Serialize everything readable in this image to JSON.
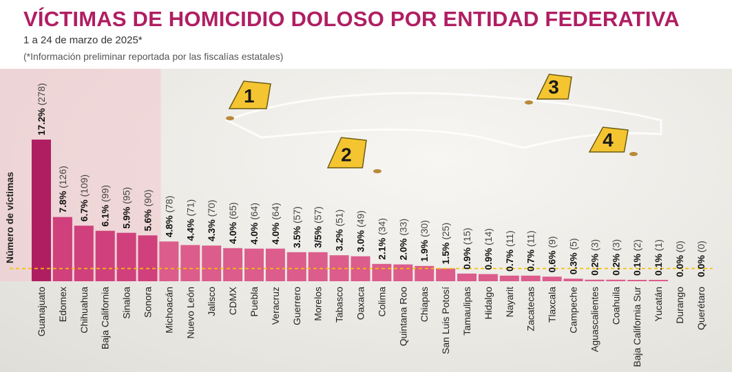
{
  "header": {
    "title": "VÍCTIMAS DE HOMICIDIO DOLOSO POR ENTIDAD FEDERATIVA",
    "subtitle": "1 a 24 de marzo de 2025*",
    "note": "(*Información preliminar reportada por las fiscalías estatales)"
  },
  "colors": {
    "title": "#b01e62",
    "bar_top": "#b01e62",
    "bar_mid": "#d0407c",
    "bar_rest": "#dc5c8c",
    "highlight": "#f2c6cd",
    "reference_line": "#f2c200",
    "marker": "#f4c531"
  },
  "evidence_markers": [
    "1",
    "2",
    "3",
    "4"
  ],
  "chart_data": {
    "type": "bar",
    "ylabel": "Número de víctimas",
    "categories": [
      "Guanajuato",
      "Edomex",
      "Chihuahua",
      "Baja California",
      "Sinaloa",
      "Sonora",
      "Michoacán",
      "Nuevo León",
      "Jalisco",
      "CDMX",
      "Puebla",
      "Veracruz",
      "Guerrero",
      "Morelos",
      "Tabasco",
      "Oaxaca",
      "Colima",
      "Quintana Roo",
      "Chiapas",
      "San Luis Potosí",
      "Tamaulipas",
      "Hidalgo",
      "Nayarit",
      "Zacatecas",
      "Tlaxcala",
      "Campeche",
      "Aguascalientes",
      "Coahuila",
      "Baja California Sur",
      "Yucatán",
      "Durango",
      "Querétaro"
    ],
    "values": [
      278,
      126,
      109,
      99,
      95,
      90,
      78,
      71,
      70,
      65,
      64,
      64,
      57,
      57,
      51,
      49,
      34,
      33,
      30,
      25,
      15,
      14,
      11,
      11,
      9,
      5,
      3,
      3,
      2,
      1,
      0,
      0
    ],
    "percent_labels": [
      "17.2%",
      "7.8%",
      "6.7%",
      "6.1%",
      "5.9%",
      "5.6%",
      "4.8%",
      "4.4%",
      "4.3%",
      "4.0%",
      "4.0%",
      "4.0%",
      "3.5%",
      "3/5%",
      "3.2%",
      "3.0%",
      "2.1%",
      "2.0%",
      "1.9%",
      "1.5%",
      "0.9%",
      "0.9%",
      "0.7%",
      "0.7%",
      "0.6%",
      "0.3%",
      "0.2%",
      "0.2%",
      "0.1%",
      "0.1%",
      "0.0%",
      "0.0%"
    ],
    "count_labels": [
      "(278)",
      "(126)",
      "(109)",
      "(99)",
      "(95)",
      "(90)",
      "(78)",
      "(71)",
      "(70)",
      "(65)",
      "(64)",
      "(64)",
      "(57)",
      "(57)",
      "(51)",
      "(49)",
      "(34)",
      "(33)",
      "(30)",
      "(25)",
      "(15)",
      "(14)",
      "(11)",
      "(11)",
      "(9)",
      "(5)",
      "(3)",
      "(3)",
      "(2)",
      "(1)",
      "(0)",
      "(0)"
    ],
    "highlighted_count": 6,
    "reference_value": 25,
    "ylim": [
      0,
      278
    ],
    "grid": false,
    "legend": "none"
  }
}
